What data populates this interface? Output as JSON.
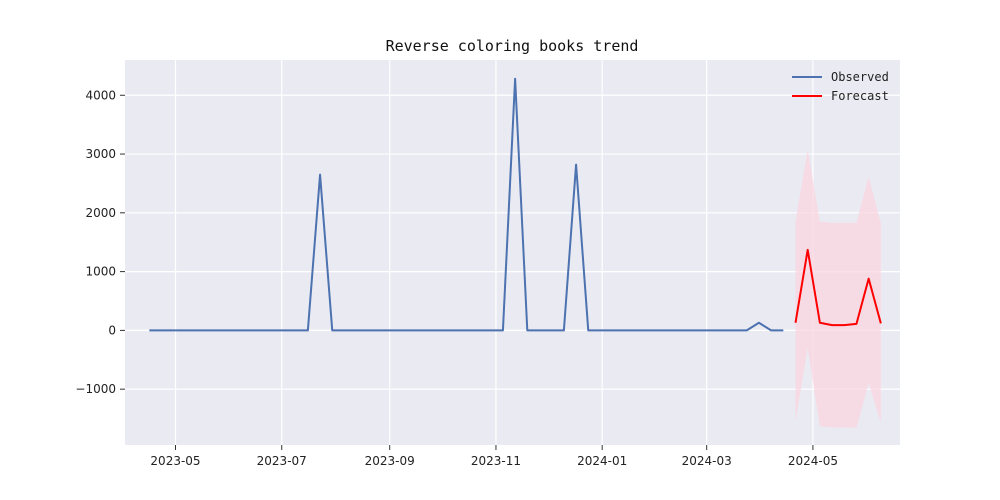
{
  "chart_data": {
    "type": "line",
    "title": "Reverse coloring books trend",
    "xlabel": "",
    "ylabel": "",
    "grid": true,
    "legend_placement": "top-right",
    "xlim": [
      "2023-04-02",
      "2024-06-20"
    ],
    "ylim": [
      -1950,
      4600
    ],
    "x_ticks": [
      "2023-05-01",
      "2023-07-01",
      "2023-09-01",
      "2023-11-01",
      "2024-01-01",
      "2024-03-01",
      "2024-05-01"
    ],
    "x_tick_labels": [
      "2023-05",
      "2023-07",
      "2023-09",
      "2023-11",
      "2024-01",
      "2024-03",
      "2024-05"
    ],
    "y_ticks": [
      -1000,
      0,
      1000,
      2000,
      3000,
      4000
    ],
    "y_tick_labels": [
      "−1000",
      "0",
      "1000",
      "2000",
      "3000",
      "4000"
    ],
    "series": [
      {
        "name": "Observed",
        "color": "#4c72b0",
        "x": [
          "2023-04-16",
          "2023-04-23",
          "2023-04-30",
          "2023-05-07",
          "2023-05-14",
          "2023-05-21",
          "2023-05-28",
          "2023-06-04",
          "2023-06-11",
          "2023-06-18",
          "2023-06-25",
          "2023-07-02",
          "2023-07-09",
          "2023-07-16",
          "2023-07-23",
          "2023-07-30",
          "2023-08-06",
          "2023-08-13",
          "2023-08-20",
          "2023-08-27",
          "2023-09-03",
          "2023-09-10",
          "2023-09-17",
          "2023-09-24",
          "2023-10-01",
          "2023-10-08",
          "2023-10-15",
          "2023-10-22",
          "2023-10-29",
          "2023-11-05",
          "2023-11-12",
          "2023-11-19",
          "2023-11-26",
          "2023-12-03",
          "2023-12-10",
          "2023-12-17",
          "2023-12-24",
          "2023-12-31",
          "2024-01-07",
          "2024-01-14",
          "2024-01-21",
          "2024-01-28",
          "2024-02-04",
          "2024-02-11",
          "2024-02-18",
          "2024-02-25",
          "2024-03-03",
          "2024-03-10",
          "2024-03-17",
          "2024-03-24",
          "2024-03-31",
          "2024-04-07",
          "2024-04-14"
        ],
        "values": [
          0,
          0,
          0,
          0,
          0,
          0,
          0,
          0,
          0,
          0,
          0,
          0,
          0,
          0,
          2650,
          0,
          0,
          0,
          0,
          0,
          0,
          0,
          0,
          0,
          0,
          0,
          0,
          0,
          0,
          0,
          4280,
          0,
          0,
          0,
          0,
          2820,
          0,
          0,
          0,
          0,
          0,
          0,
          0,
          0,
          0,
          0,
          0,
          0,
          0,
          0,
          130,
          0,
          0
        ]
      },
      {
        "name": "Forecast",
        "color": "#ff0000",
        "x": [
          "2024-04-21",
          "2024-04-28",
          "2024-05-05",
          "2024-05-12",
          "2024-05-19",
          "2024-05-26",
          "2024-06-02",
          "2024-06-09"
        ],
        "values": [
          130,
          1370,
          130,
          90,
          90,
          110,
          880,
          120
        ],
        "interval_lower": [
          -1550,
          -300,
          -1630,
          -1650,
          -1650,
          -1660,
          -900,
          -1570
        ],
        "interval_upper": [
          1850,
          3080,
          1850,
          1830,
          1830,
          1830,
          2620,
          1820
        ],
        "interval_color": "#f9d5e0"
      }
    ]
  }
}
